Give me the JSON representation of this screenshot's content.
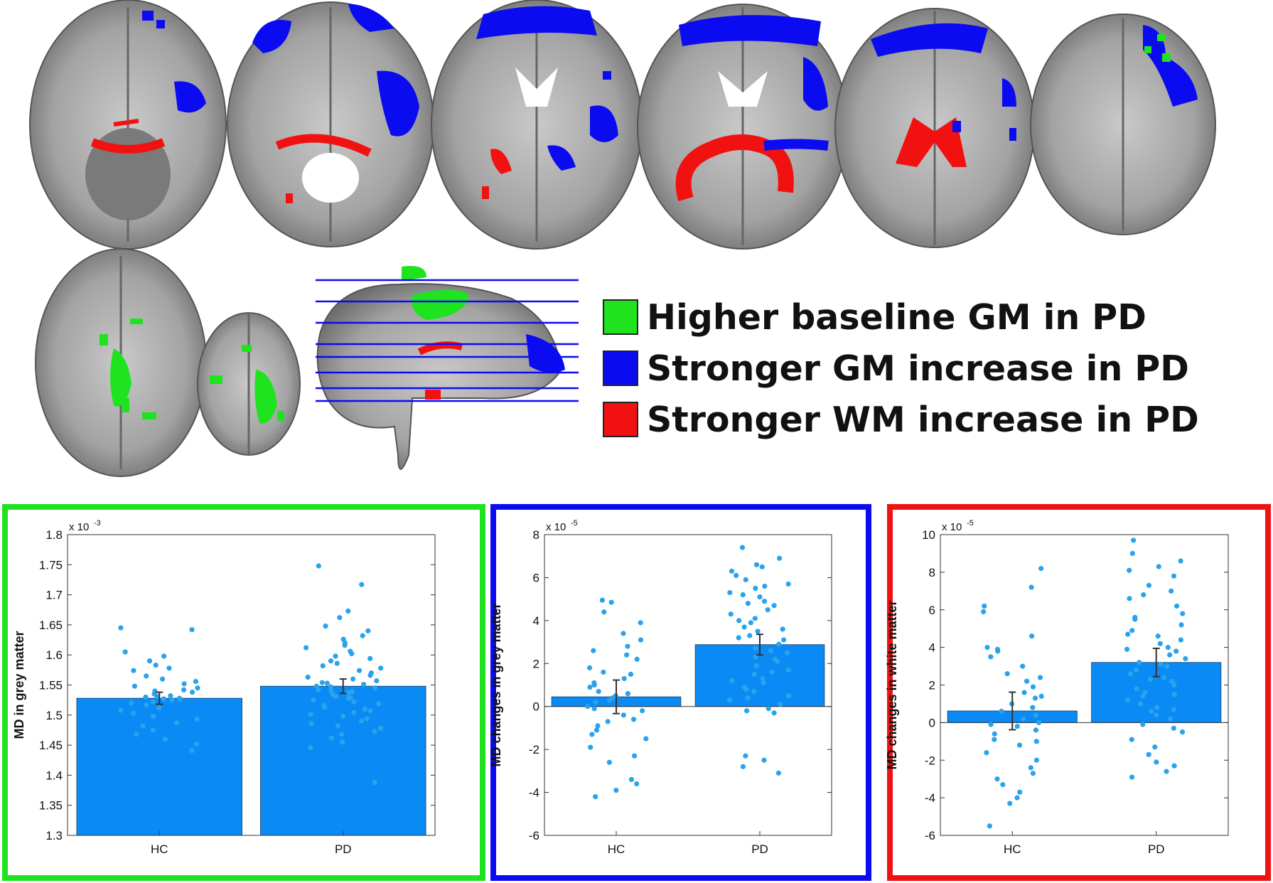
{
  "legend": {
    "items": [
      {
        "label": "Higher baseline GM in PD",
        "color": "#1fe31f"
      },
      {
        "label": "Stronger GM increase in PD",
        "color": "#0b0bf2"
      },
      {
        "label": "Stronger WM increase in PD",
        "color": "#f21111"
      }
    ]
  },
  "colors": {
    "green": "#1fe31f",
    "blue": "#0b0bf2",
    "red": "#f21111",
    "bar": "#0a8af5",
    "dot": "#2aa3ec",
    "brain": "#9a9a9a"
  },
  "chart_data": [
    {
      "type": "bar",
      "frame_color": "#1fe31f",
      "categories": [
        "HC",
        "PD"
      ],
      "values": [
        1.528,
        1.548
      ],
      "errors": [
        0.01,
        0.012
      ],
      "exponent_label": "x 10",
      "exponent": "-3",
      "ylabel": "MD in grey matter",
      "ylim": [
        1.3,
        1.8
      ],
      "yticks": [
        1.3,
        1.35,
        1.4,
        1.45,
        1.5,
        1.55,
        1.6,
        1.65,
        1.7,
        1.75,
        1.8
      ],
      "ytick_labels": [
        "1.3",
        "1.35",
        "1.4",
        "1.45",
        "1.5",
        "1.55",
        "1.6",
        "1.65",
        "1.7",
        "1.75",
        "1.8"
      ],
      "points": [
        [
          1.645,
          1.642,
          1.605,
          1.598,
          1.59,
          1.583,
          1.578,
          1.574,
          1.565,
          1.56,
          1.556,
          1.552,
          1.548,
          1.545,
          1.542,
          1.54,
          1.538,
          1.535,
          1.532,
          1.53,
          1.528,
          1.527,
          1.525,
          1.522,
          1.52,
          1.517,
          1.512,
          1.508,
          1.503,
          1.498,
          1.493,
          1.487,
          1.482,
          1.475,
          1.468,
          1.46,
          1.452,
          1.441,
          1.531,
          1.526
        ],
        [
          1.748,
          1.717,
          1.673,
          1.662,
          1.648,
          1.64,
          1.632,
          1.626,
          1.62,
          1.616,
          1.612,
          1.606,
          1.602,
          1.598,
          1.594,
          1.59,
          1.586,
          1.582,
          1.578,
          1.574,
          1.57,
          1.566,
          1.563,
          1.56,
          1.557,
          1.554,
          1.551,
          1.548,
          1.545,
          1.542,
          1.54,
          1.537,
          1.534,
          1.531,
          1.528,
          1.525,
          1.522,
          1.519,
          1.516,
          1.513,
          1.51,
          1.507,
          1.504,
          1.501,
          1.498,
          1.494,
          1.49,
          1.486,
          1.482,
          1.478,
          1.473,
          1.468,
          1.462,
          1.455,
          1.446,
          1.388,
          1.553,
          1.547,
          1.539,
          1.529
        ]
      ]
    },
    {
      "type": "bar",
      "frame_color": "#0b0bf2",
      "categories": [
        "HC",
        "PD"
      ],
      "values": [
        0.45,
        2.88
      ],
      "errors": [
        0.78,
        0.48
      ],
      "exponent_label": "x 10",
      "exponent": "-5",
      "ylabel": "MD changes in grey matter",
      "ylim": [
        -6,
        8
      ],
      "yticks": [
        -6,
        -4,
        -2,
        0,
        2,
        4,
        6,
        8
      ],
      "ytick_labels": [
        "-6",
        "-4",
        "-2",
        "0",
        "2",
        "4",
        "6",
        "8"
      ],
      "points": [
        [
          4.95,
          4.85,
          4.4,
          3.9,
          3.4,
          3.1,
          2.8,
          2.6,
          2.2,
          1.8,
          1.6,
          1.5,
          1.3,
          1.1,
          0.9,
          0.7,
          0.5,
          0.4,
          0.2,
          0.0,
          -0.1,
          -0.4,
          -0.6,
          -0.9,
          -1.1,
          -1.3,
          -1.5,
          -1.9,
          -2.3,
          -2.6,
          -3.4,
          -3.6,
          -3.9,
          -4.2,
          0.3,
          0.6,
          -0.2,
          1.0,
          2.4,
          -0.7
        ],
        [
          7.4,
          6.9,
          6.5,
          6.3,
          6.1,
          5.9,
          5.7,
          5.5,
          5.3,
          5.1,
          4.9,
          4.7,
          4.5,
          4.3,
          4.1,
          3.9,
          3.7,
          3.5,
          3.3,
          3.1,
          2.9,
          2.7,
          2.5,
          2.3,
          2.1,
          1.9,
          1.7,
          1.5,
          1.3,
          1.1,
          0.9,
          0.7,
          0.5,
          0.3,
          0.1,
          -0.1,
          -0.3,
          -2.3,
          -2.5,
          -2.8,
          -3.1,
          6.6,
          5.6,
          4.8,
          4.0,
          3.6,
          2.6,
          1.6,
          0.8,
          5.2,
          3.2,
          2.2,
          1.2,
          0.4,
          -0.2
        ]
      ]
    },
    {
      "type": "bar",
      "frame_color": "#f21111",
      "categories": [
        "HC",
        "PD"
      ],
      "values": [
        0.62,
        3.2
      ],
      "errors": [
        1.0,
        0.75
      ],
      "exponent_label": "x 10",
      "exponent": "-5",
      "ylabel": "MD changes in white matter",
      "ylim": [
        -6,
        10
      ],
      "yticks": [
        -6,
        -4,
        -2,
        0,
        2,
        4,
        6,
        8,
        10
      ],
      "ytick_labels": [
        "-6",
        "-4",
        "-2",
        "0",
        "2",
        "4",
        "6",
        "8",
        "10"
      ],
      "points": [
        [
          8.2,
          7.2,
          6.2,
          5.9,
          4.6,
          4.0,
          3.8,
          3.5,
          3.0,
          2.6,
          2.2,
          1.9,
          1.6,
          1.3,
          1.0,
          0.8,
          0.6,
          0.4,
          0.2,
          0.0,
          -0.2,
          -0.4,
          -0.6,
          -0.9,
          -1.2,
          -1.6,
          -2.0,
          -2.4,
          -2.7,
          -3.0,
          -3.3,
          -3.7,
          -4.0,
          -4.3,
          -5.5,
          3.9,
          2.4,
          1.4,
          -0.1,
          -1.0
        ],
        [
          9.7,
          9.0,
          8.6,
          8.3,
          7.8,
          7.3,
          7.0,
          6.6,
          6.2,
          5.8,
          5.5,
          5.2,
          4.9,
          4.6,
          4.4,
          4.2,
          4.0,
          3.8,
          3.6,
          3.4,
          3.2,
          3.0,
          2.8,
          2.6,
          2.4,
          2.2,
          2.0,
          1.8,
          1.6,
          1.4,
          1.2,
          1.0,
          0.8,
          0.6,
          0.4,
          0.2,
          -0.1,
          -0.5,
          -0.9,
          -1.3,
          -1.7,
          -2.1,
          -2.6,
          -2.9,
          6.8,
          5.6,
          4.7,
          3.9,
          3.1,
          2.3,
          1.5,
          0.7,
          -0.3,
          8.1,
          -2.3
        ]
      ]
    }
  ]
}
